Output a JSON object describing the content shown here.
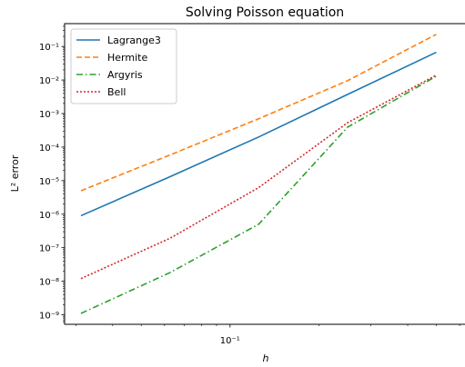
{
  "chart_data": {
    "type": "line",
    "title": "Solving Poisson equation",
    "xlabel": "h",
    "ylabel": "L² error",
    "xscale": "log",
    "yscale": "log",
    "xlim": [
      0.0275,
      0.63
    ],
    "ylim": [
      5.2e-10,
      0.48
    ],
    "xticks": [
      {
        "value": 0.1,
        "label": "10⁻¹"
      }
    ],
    "yticks": [
      {
        "value": 1e-09,
        "label": "10⁻⁹"
      },
      {
        "value": 1e-08,
        "label": "10⁻⁸"
      },
      {
        "value": 1e-07,
        "label": "10⁻⁷"
      },
      {
        "value": 1e-06,
        "label": "10⁻⁶"
      },
      {
        "value": 1e-05,
        "label": "10⁻⁵"
      },
      {
        "value": 0.0001,
        "label": "10⁻⁴"
      },
      {
        "value": 0.001,
        "label": "10⁻³"
      },
      {
        "value": 0.01,
        "label": "10⁻²"
      },
      {
        "value": 0.1,
        "label": "10⁻¹"
      }
    ],
    "grid": false,
    "legend_position": "top-left",
    "series": [
      {
        "name": "Lagrange3",
        "color": "#1f77b4",
        "dash": "solid",
        "x": [
          0.03125,
          0.0625,
          0.125,
          0.25,
          0.5
        ],
        "y": [
          9e-07,
          1.3e-05,
          0.0002,
          0.0037,
          0.067
        ]
      },
      {
        "name": "Hermite",
        "color": "#ff7f0e",
        "dash": "dashed",
        "x": [
          0.03125,
          0.0625,
          0.125,
          0.25,
          0.5
        ],
        "y": [
          5e-06,
          5.8e-05,
          0.0007,
          0.0095,
          0.23
        ]
      },
      {
        "name": "Argyris",
        "color": "#2ca02c",
        "dash": "dashdot",
        "x": [
          0.03125,
          0.0625,
          0.125,
          0.25,
          0.5
        ],
        "y": [
          1.1e-09,
          1.8e-08,
          5e-07,
          0.00039,
          0.013
        ]
      },
      {
        "name": "Bell",
        "color": "#d62728",
        "dash": "dotted",
        "x": [
          0.03125,
          0.0625,
          0.125,
          0.25,
          0.5
        ],
        "y": [
          1.2e-08,
          1.9e-07,
          6.2e-06,
          0.00053,
          0.014
        ]
      }
    ]
  }
}
